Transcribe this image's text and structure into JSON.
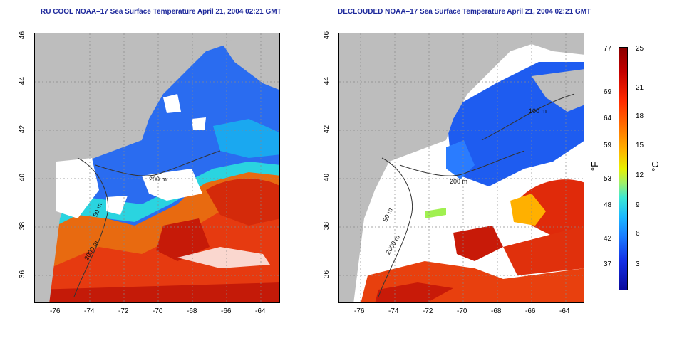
{
  "left_title": "RU COOL NOAA–17 Sea Surface Temperature April 21, 2004 02:21 GMT",
  "right_title": "DECLOUDED NOAA–17 Sea Surface Temperature April 21, 2004 02:21 GMT",
  "x_ticks": [
    "-76",
    "-74",
    "-72",
    "-70",
    "-68",
    "-66",
    "-64"
  ],
  "y_ticks": [
    "46",
    "44",
    "42",
    "40",
    "38",
    "36"
  ],
  "left_contours": {
    "c1": "50 m",
    "c2": "2000 m",
    "c3": "200 m"
  },
  "right_contours": {
    "c1": "100 m",
    "c2": "200 m",
    "c3": "50 m",
    "c4": "2000 m"
  },
  "colorbar": {
    "f_labels": [
      "77",
      "69",
      "64",
      "59",
      "53",
      "48",
      "42",
      "37"
    ],
    "c_labels": [
      "25",
      "21",
      "18",
      "15",
      "12",
      "9",
      "6",
      "3"
    ],
    "f_unit": "°F",
    "c_unit": "°C"
  }
}
